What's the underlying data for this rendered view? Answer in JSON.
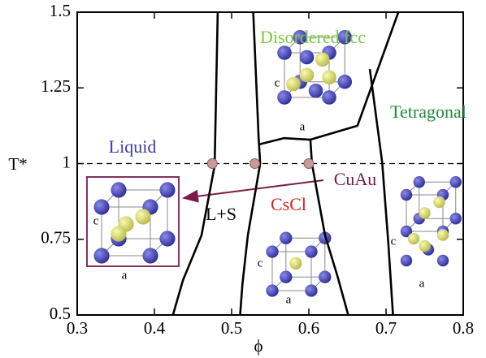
{
  "chart_data": {
    "type": "line",
    "x_label": "ϕ",
    "y_label": "T*",
    "xlim": [
      0.3,
      0.8
    ],
    "xticks": [
      0.3,
      0.4,
      0.5,
      0.6,
      0.7,
      0.8
    ],
    "ylim": [
      0.5,
      1.5
    ],
    "yticks": [
      0.5,
      0.75,
      1,
      1.25,
      1.5
    ],
    "series": [
      {
        "color": "#000000",
        "x": [
          0.482,
          0.478,
          0.461,
          0.437,
          0.424
        ],
        "values": [
          1.5,
          0.993,
          0.763,
          0.615,
          0.5
        ]
      },
      {
        "color": "#000000",
        "x": [
          0.528,
          0.535,
          0.537,
          0.521,
          0.514,
          0.511
        ],
        "values": [
          1.5,
          1.084,
          1.0,
          0.763,
          0.602,
          0.5
        ]
      },
      {
        "color": "#000000",
        "x": [
          0.535,
          0.568,
          0.602,
          0.604,
          0.621,
          0.637,
          0.651
        ],
        "values": [
          1.063,
          1.084,
          1.079,
          1.0,
          0.763,
          0.629,
          0.5
        ]
      },
      {
        "color": "#000000",
        "x": [
          0.716,
          0.663,
          0.602
        ],
        "values": [
          1.5,
          1.125,
          1.079
        ]
      },
      {
        "color": "#000000",
        "x": [
          0.679,
          0.695,
          0.703,
          0.709
        ],
        "values": [
          1.312,
          1.004,
          0.736,
          0.5
        ]
      }
    ],
    "reference_line": 1,
    "points": {
      "color": "#c99a9a",
      "x": [
        0.475,
        0.53,
        0.6
      ],
      "values": [
        1,
        1,
        1
      ]
    },
    "annotations": [
      {
        "text": "Liquid",
        "color": "#3c3ca8"
      },
      {
        "text": "Disordered fcc",
        "color": "#7cc843"
      },
      {
        "text": "Tetragonal",
        "color": "#1c8a3c"
      },
      {
        "text": "L+S",
        "color": "#000000"
      },
      {
        "text": "CsCl",
        "color": "#e02020"
      },
      {
        "text": "CuAu",
        "color": "#7a1a4a"
      }
    ],
    "cell_axis_labels": {
      "a": "a",
      "c": "c"
    }
  }
}
